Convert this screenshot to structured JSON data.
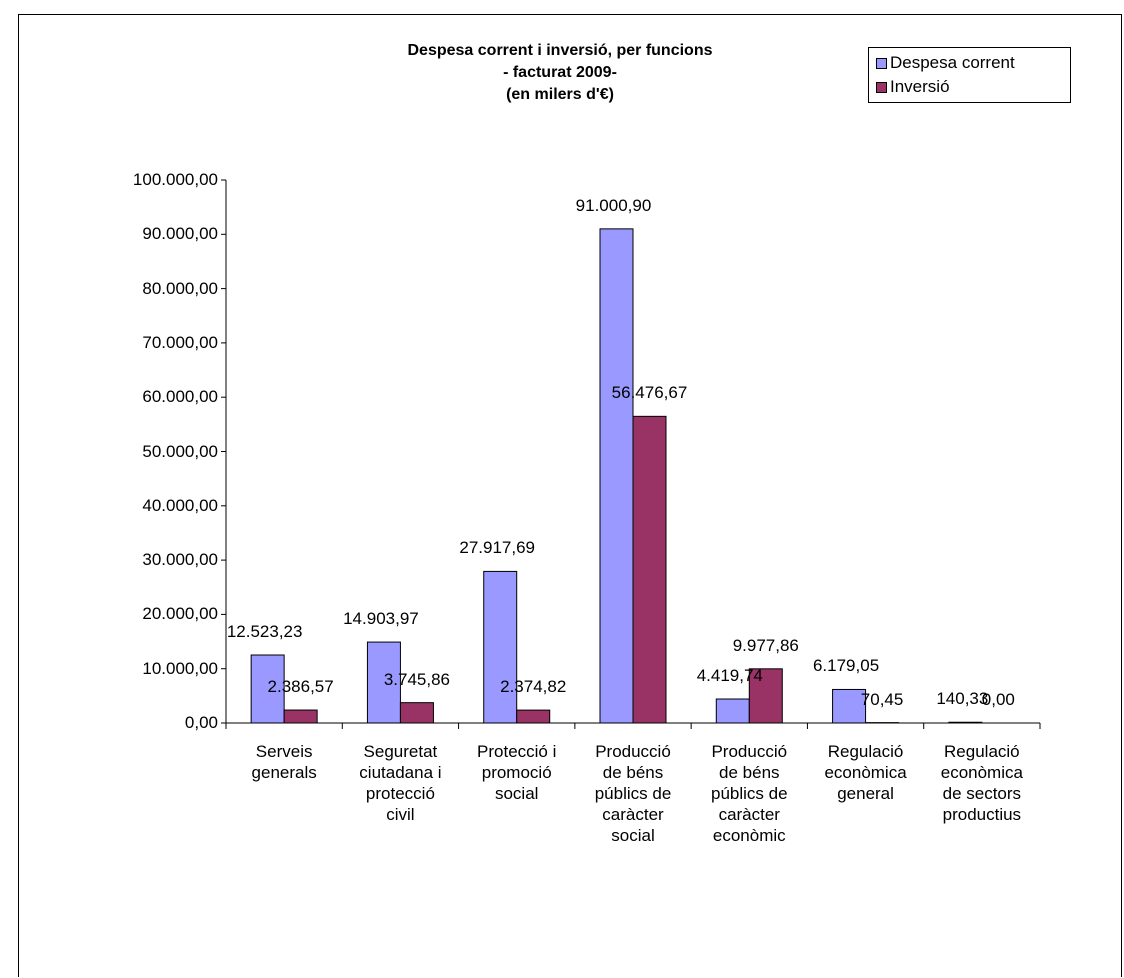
{
  "chart_data": {
    "type": "bar",
    "title_lines": [
      "Despesa corrent i inversió, per funcions",
      "- facturat 2009-",
      "(en milers d'€)"
    ],
    "categories": [
      [
        "Serveis",
        "generals"
      ],
      [
        "Seguretat",
        "ciutadana i",
        "protecció",
        "civil"
      ],
      [
        "Protecció i",
        "promoció",
        "social"
      ],
      [
        "Producció",
        "de béns",
        "públics de",
        "caràcter",
        "social"
      ],
      [
        "Producció",
        "de béns",
        "públics de",
        "caràcter",
        "econòmic"
      ],
      [
        "Regulació",
        "econòmica",
        "general"
      ],
      [
        "Regulació",
        "econòmica",
        "de sectors",
        "productius"
      ]
    ],
    "series": [
      {
        "name": "Despesa corrent",
        "color": "#9999FF",
        "values": [
          12523.23,
          14903.97,
          27917.69,
          91000.9,
          4419.74,
          6179.05,
          140.33
        ],
        "labels": [
          "12.523,23",
          "14.903,97",
          "27.917,69",
          "91.000,90",
          "4.419,74",
          "6.179,05",
          "140,33"
        ]
      },
      {
        "name": "Inversió",
        "color": "#993366",
        "values": [
          2386.57,
          3745.86,
          2374.82,
          56476.67,
          9977.86,
          70.45,
          0.0
        ],
        "labels": [
          "2.386,57",
          "3.745,86",
          "2.374,82",
          "56.476,67",
          "9.977,86",
          "70,45",
          "0,00"
        ]
      }
    ],
    "ylim": [
      0,
      100000
    ],
    "yticks": [
      0,
      10000,
      20000,
      30000,
      40000,
      50000,
      60000,
      70000,
      80000,
      90000,
      100000
    ],
    "ytick_labels": [
      "0,00",
      "10.000,00",
      "20.000,00",
      "30.000,00",
      "40.000,00",
      "50.000,00",
      "60.000,00",
      "70.000,00",
      "80.000,00",
      "90.000,00",
      "100.000,00"
    ],
    "legend_position": "top-right",
    "grid": false
  }
}
